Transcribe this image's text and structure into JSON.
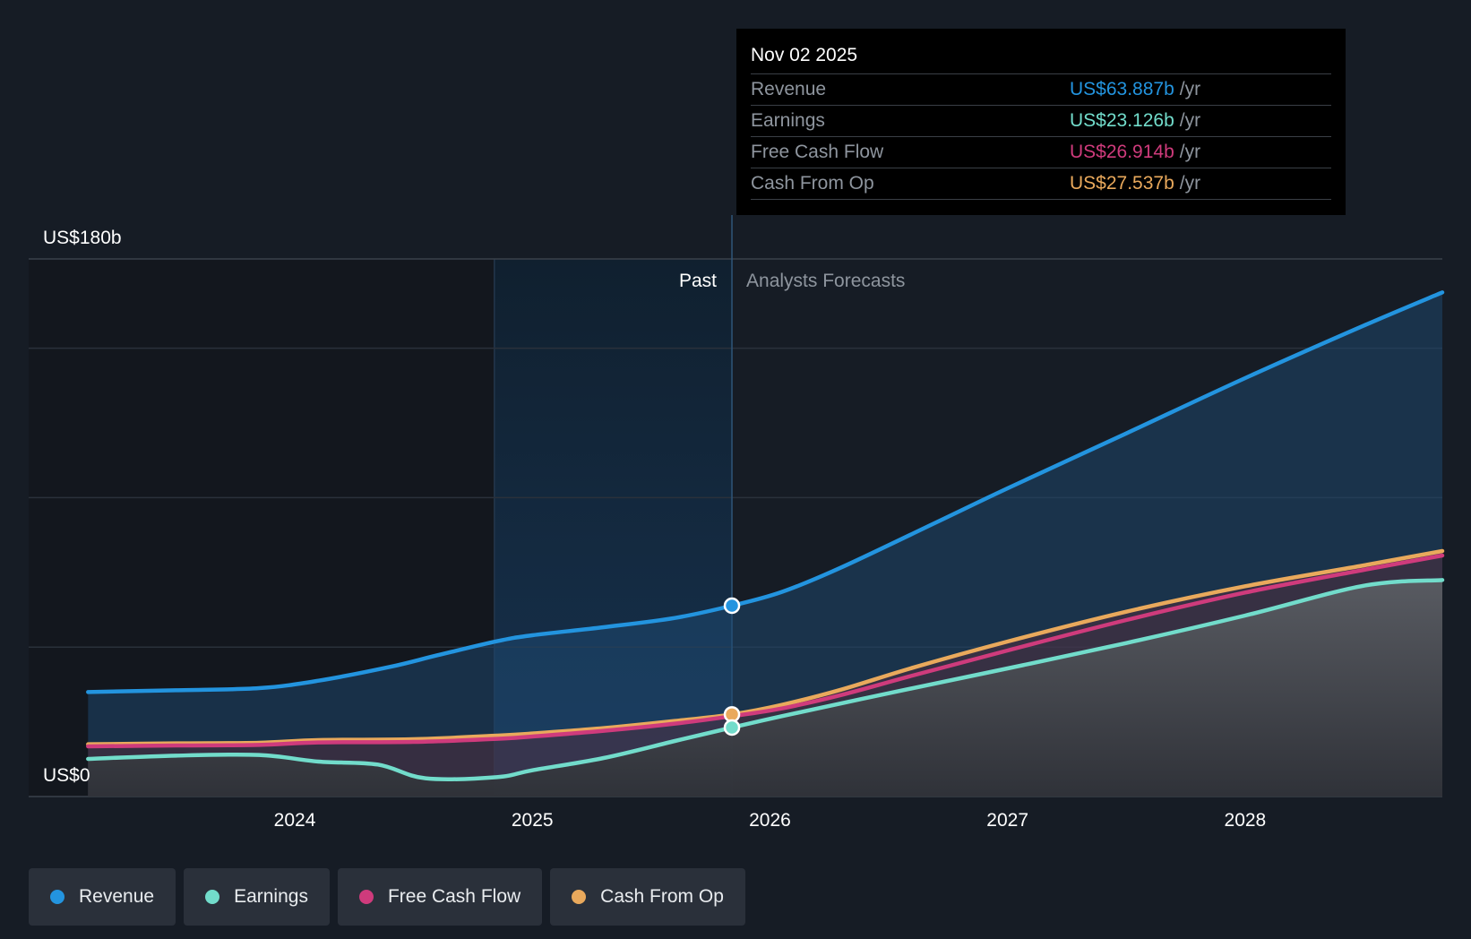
{
  "chart_data": {
    "type": "area",
    "y_max_label": "US$180b",
    "y_min_label": "US$0",
    "ylim": [
      0,
      180
    ],
    "unit": "US$ billions",
    "past_label": "Past",
    "forecast_label": "Analysts Forecasts",
    "x_ticks": [
      "2024",
      "2025",
      "2026",
      "2027",
      "2028"
    ],
    "x_tick_values": [
      2024.0,
      2025.0,
      2026.0,
      2027.0,
      2028.0
    ],
    "x_range": [
      2022.88,
      2028.83
    ],
    "past_start": 2024.84,
    "forecast_start": 2025.84,
    "grid": true,
    "legend_position": "bottom-left",
    "series": [
      {
        "name": "Revenue",
        "color": "#2394df",
        "points": [
          [
            2023.13,
            35
          ],
          [
            2023.5,
            35.6
          ],
          [
            2023.85,
            36.3
          ],
          [
            2024.1,
            38.8
          ],
          [
            2024.4,
            43.4
          ],
          [
            2024.6,
            47.3
          ],
          [
            2024.85,
            52
          ],
          [
            2025.0,
            54
          ],
          [
            2025.3,
            56.7
          ],
          [
            2025.6,
            59.8
          ],
          [
            2025.84,
            63.9
          ],
          [
            2026.05,
            68.5
          ],
          [
            2026.3,
            76.7
          ],
          [
            2026.7,
            91.8
          ],
          [
            2027.0,
            103.2
          ],
          [
            2027.5,
            121.6
          ],
          [
            2028.0,
            140.1
          ],
          [
            2028.5,
            157.7
          ],
          [
            2028.83,
            168.8
          ]
        ]
      },
      {
        "name": "Cash From Op",
        "color": "#e9a95c",
        "points": [
          [
            2023.13,
            17.5
          ],
          [
            2023.5,
            17.8
          ],
          [
            2023.85,
            18
          ],
          [
            2024.1,
            18.9
          ],
          [
            2024.5,
            19.2
          ],
          [
            2024.85,
            20.4
          ],
          [
            2025.0,
            21.1
          ],
          [
            2025.3,
            22.9
          ],
          [
            2025.6,
            25.3
          ],
          [
            2025.84,
            27.5
          ],
          [
            2026.05,
            30.7
          ],
          [
            2026.3,
            35.8
          ],
          [
            2026.6,
            43.1
          ],
          [
            2027.0,
            51.9
          ],
          [
            2027.5,
            61.9
          ],
          [
            2028.0,
            70.4
          ],
          [
            2028.5,
            77.4
          ],
          [
            2028.83,
            82.2
          ]
        ]
      },
      {
        "name": "Free Cash Flow",
        "color": "#cf3b7c",
        "points": [
          [
            2023.13,
            16.8
          ],
          [
            2023.5,
            17.1
          ],
          [
            2023.85,
            17.3
          ],
          [
            2024.1,
            18.1
          ],
          [
            2024.5,
            18.3
          ],
          [
            2024.85,
            19.3
          ],
          [
            2025.0,
            20.1
          ],
          [
            2025.3,
            22
          ],
          [
            2025.6,
            24.4
          ],
          [
            2025.84,
            26.9
          ],
          [
            2026.05,
            29.5
          ],
          [
            2026.3,
            34
          ],
          [
            2026.6,
            40.5
          ],
          [
            2027.0,
            48.9
          ],
          [
            2027.5,
            59.1
          ],
          [
            2028.0,
            68.3
          ],
          [
            2028.5,
            75.9
          ],
          [
            2028.83,
            80.7
          ]
        ]
      },
      {
        "name": "Earnings",
        "color": "#72dccb",
        "points": [
          [
            2023.13,
            12.6
          ],
          [
            2023.5,
            13.7
          ],
          [
            2023.85,
            13.9
          ],
          [
            2024.1,
            11.7
          ],
          [
            2024.35,
            10.7
          ],
          [
            2024.55,
            6.1
          ],
          [
            2024.85,
            6.5
          ],
          [
            2025.0,
            8.8
          ],
          [
            2025.3,
            12.9
          ],
          [
            2025.6,
            18.6
          ],
          [
            2025.84,
            23.1
          ],
          [
            2026.05,
            26.9
          ],
          [
            2026.5,
            34.6
          ],
          [
            2027.0,
            42.9
          ],
          [
            2027.5,
            51.4
          ],
          [
            2028.0,
            60.6
          ],
          [
            2028.5,
            70.6
          ],
          [
            2028.83,
            72.5
          ]
        ]
      }
    ],
    "tooltip": {
      "date": "Nov 02 2025",
      "unit": "/yr",
      "rows": [
        {
          "label": "Revenue",
          "value": "US$63.887b",
          "color": "#2394df"
        },
        {
          "label": "Earnings",
          "value": "US$23.126b",
          "color": "#72dccb"
        },
        {
          "label": "Free Cash Flow",
          "value": "US$26.914b",
          "color": "#cf3b7c"
        },
        {
          "label": "Cash From Op",
          "value": "US$27.537b",
          "color": "#e9a95c"
        }
      ]
    },
    "legend": [
      {
        "label": "Revenue",
        "color": "#2394df"
      },
      {
        "label": "Earnings",
        "color": "#72dccb"
      },
      {
        "label": "Free Cash Flow",
        "color": "#cf3b7c"
      },
      {
        "label": "Cash From Op",
        "color": "#e9a95c"
      }
    ]
  }
}
